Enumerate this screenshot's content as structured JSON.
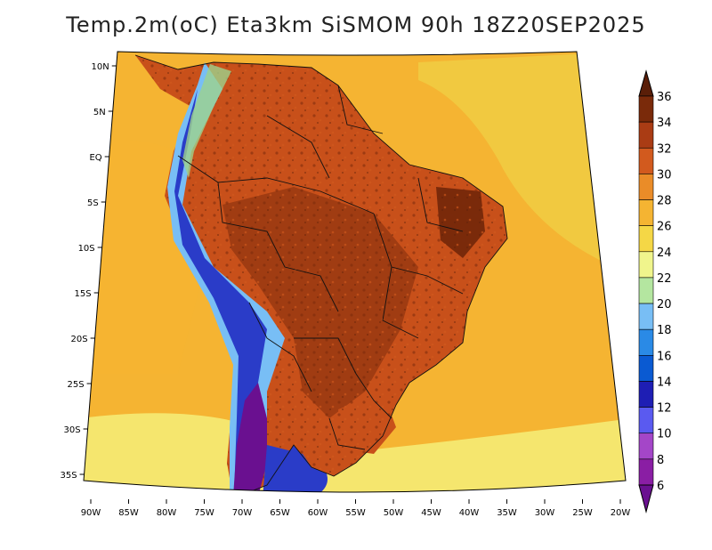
{
  "title": "Temp.2m(oC) Eta3km SiSMOM 90h 18Z20SEP2025",
  "map": {
    "lat_labels": [
      "10N",
      "5N",
      "EQ",
      "5S",
      "10S",
      "15S",
      "20S",
      "25S",
      "30S",
      "35S"
    ],
    "lon_labels": [
      "90W",
      "85W",
      "80W",
      "75W",
      "70W",
      "65W",
      "60W",
      "55W",
      "50W",
      "45W",
      "40W",
      "35W",
      "30W",
      "25W",
      "20W"
    ]
  },
  "colorbar": {
    "levels": [
      "6",
      "8",
      "10",
      "12",
      "14",
      "16",
      "18",
      "20",
      "22",
      "24",
      "26",
      "28",
      "30",
      "32",
      "34",
      "36"
    ],
    "colors": [
      "#8a1ea4",
      "#a446c8",
      "#5a5af0",
      "#1e1eb4",
      "#0a5ad2",
      "#2a8ae6",
      "#78bef5",
      "#b4e6a0",
      "#f0f58c",
      "#f5d746",
      "#f5b432",
      "#ea8c28",
      "#d25a1e",
      "#aa3c14",
      "#7a2a0a"
    ],
    "top_color": "#5a1e08",
    "bottom_color": "#6a1090"
  },
  "field_colors": {
    "ocean": "#f5b432",
    "ocean_warm": "#f0d246",
    "ocean_cool": "#f5e66e",
    "land_hot": "#a03c12",
    "land_very_hot": "#7a2a0a",
    "land_mid": "#c8501a",
    "andes_cold": "#2a3cc8",
    "andes_colder": "#6a1090",
    "andes_green": "#9ed28c",
    "andes_light": "#78bef5",
    "border": "#111111"
  }
}
